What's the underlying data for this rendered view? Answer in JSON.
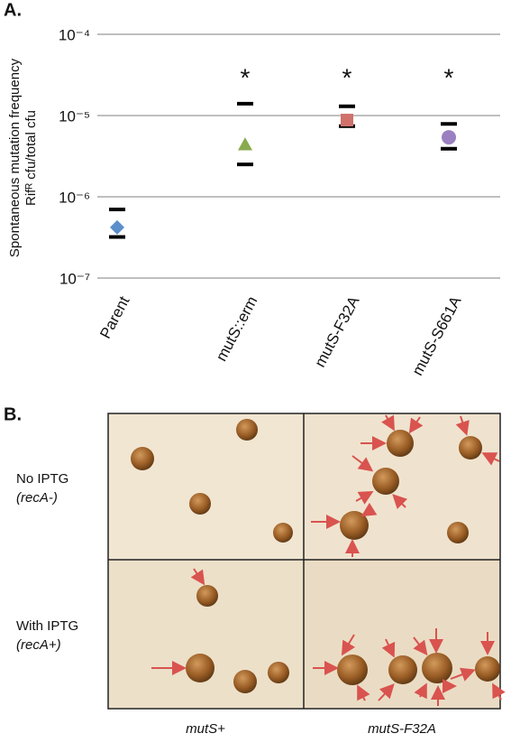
{
  "chart_data": {
    "type": "scatter",
    "panel_label": "A.",
    "y_label": [
      "Spontaneous mutation frequency",
      "Rifᴿ cfu/total cfu"
    ],
    "categories": [
      "Parent",
      "mutS::erm",
      "mutS-F32A",
      "mutS-S661A"
    ],
    "series": [
      {
        "values": [
          4.2e-07,
          4.4e-06,
          8.8e-06,
          5.4e-06
        ],
        "upper": [
          7e-07,
          1.4e-05,
          1.3e-05,
          7.9e-06
        ],
        "lower": [
          3.2e-07,
          2.5e-06,
          7.4e-06,
          3.9e-06
        ],
        "colors": [
          "#5b8fcb",
          "#8aaa4e",
          "#d0716c",
          "#9a80c0"
        ],
        "markers": [
          "diamond",
          "triangle",
          "square",
          "circle"
        ]
      }
    ],
    "significance": [
      null,
      "*",
      "*",
      "*"
    ],
    "log_scale": true,
    "grid": true,
    "ylim": [
      1e-07,
      0.0001
    ],
    "yticks": [
      {
        "value": 1e-07,
        "label": "10⁻⁷"
      },
      {
        "value": 1e-06,
        "label": "10⁻⁶"
      },
      {
        "value": 1e-05,
        "label": "10⁻⁵"
      },
      {
        "value": 0.0001,
        "label": "10⁻⁴"
      }
    ]
  },
  "panel_b": {
    "panel_label": "B.",
    "row_labels": [
      [
        "No IPTG",
        "(recA-)"
      ],
      [
        "With IPTG",
        "(recA+)"
      ]
    ],
    "column_labels": [
      "mutS+",
      "mutS-F32A"
    ]
  }
}
